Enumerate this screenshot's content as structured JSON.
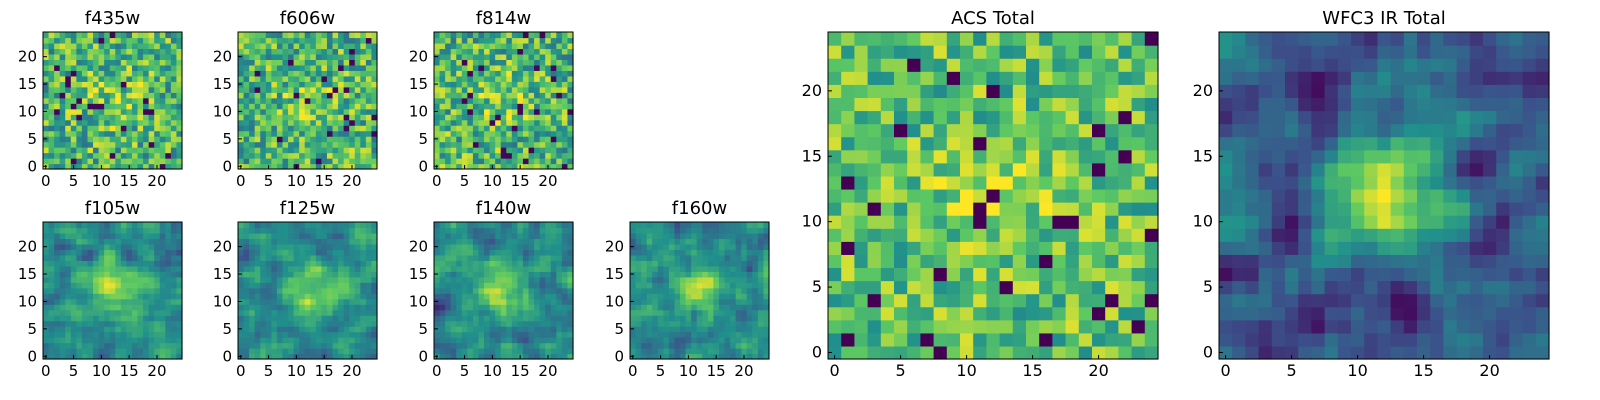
{
  "figure": {
    "description_free": true
  },
  "chart_data": [
    {
      "type": "heatmap",
      "title": "f435w",
      "xlim": [
        0,
        24
      ],
      "ylim": [
        0,
        24
      ],
      "xticks": [
        0,
        5,
        10,
        15,
        20
      ],
      "yticks": [
        0,
        5,
        10,
        15,
        20
      ],
      "pattern": "noise",
      "seed": 11
    },
    {
      "type": "heatmap",
      "title": "f606w",
      "xlim": [
        0,
        24
      ],
      "ylim": [
        0,
        24
      ],
      "xticks": [
        0,
        5,
        10,
        15,
        20
      ],
      "yticks": [
        0,
        5,
        10,
        15,
        20
      ],
      "pattern": "noise",
      "seed": 23
    },
    {
      "type": "heatmap",
      "title": "f814w",
      "xlim": [
        0,
        24
      ],
      "ylim": [
        0,
        24
      ],
      "xticks": [
        0,
        5,
        10,
        15,
        20
      ],
      "yticks": [
        0,
        5,
        10,
        15,
        20
      ],
      "pattern": "noise",
      "seed": 37
    },
    {
      "type": "heatmap",
      "title": "f105w",
      "xlim": [
        0,
        24
      ],
      "ylim": [
        0,
        24
      ],
      "xticks": [
        0,
        5,
        10,
        15,
        20
      ],
      "yticks": [
        0,
        5,
        10,
        15,
        20
      ],
      "pattern": "blob",
      "seed": 41
    },
    {
      "type": "heatmap",
      "title": "f125w",
      "xlim": [
        0,
        24
      ],
      "ylim": [
        0,
        24
      ],
      "xticks": [
        0,
        5,
        10,
        15,
        20
      ],
      "yticks": [
        0,
        5,
        10,
        15,
        20
      ],
      "pattern": "blob",
      "seed": 53
    },
    {
      "type": "heatmap",
      "title": "f140w",
      "xlim": [
        0,
        24
      ],
      "ylim": [
        0,
        24
      ],
      "xticks": [
        0,
        5,
        10,
        15,
        20
      ],
      "yticks": [
        0,
        5,
        10,
        15,
        20
      ],
      "pattern": "blob",
      "seed": 67
    },
    {
      "type": "heatmap",
      "title": "f160w",
      "xlim": [
        0,
        24
      ],
      "ylim": [
        0,
        24
      ],
      "xticks": [
        0,
        5,
        10,
        15,
        20
      ],
      "yticks": [
        0,
        5,
        10,
        15,
        20
      ],
      "pattern": "blob",
      "seed": 79
    },
    {
      "type": "heatmap",
      "title": "ACS Total",
      "xlim": [
        0,
        24
      ],
      "ylim": [
        0,
        24
      ],
      "xticks": [
        0,
        5,
        10,
        15,
        20
      ],
      "yticks": [
        0,
        5,
        10,
        15,
        20
      ],
      "pattern": "noise-bright",
      "seed": 83
    },
    {
      "type": "heatmap",
      "title": "WFC3 IR Total",
      "xlim": [
        0,
        24
      ],
      "ylim": [
        0,
        24
      ],
      "xticks": [
        0,
        5,
        10,
        15,
        20
      ],
      "yticks": [
        0,
        5,
        10,
        15,
        20
      ],
      "pattern": "blob-strong",
      "seed": 97
    }
  ],
  "colormap": {
    "name": "viridis",
    "stops": [
      "#440154",
      "#3b528b",
      "#21918c",
      "#5ec962",
      "#fde725"
    ]
  }
}
